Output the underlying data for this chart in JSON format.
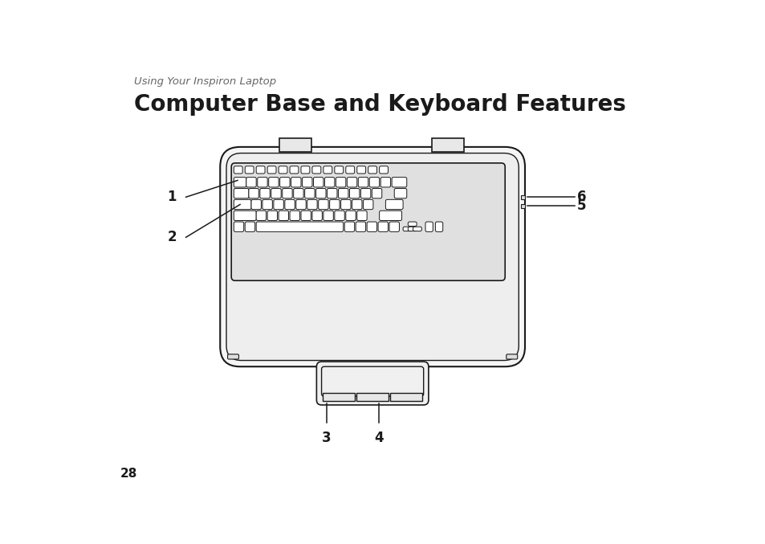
{
  "background_color": "#ffffff",
  "subtitle": "Using Your Inspiron Laptop",
  "subtitle_color": "#666666",
  "subtitle_fontsize": 9.5,
  "title": "Computer Base and Keyboard Features",
  "title_fontsize": 20,
  "title_fontweight": "bold",
  "title_color": "#1a1a1a",
  "page_number": "28",
  "page_number_fontsize": 11,
  "label_fontsize": 12,
  "label_fontweight": "bold",
  "line_color": "#1a1a1a",
  "outer_body_color": "#f5f5f5",
  "inner_body_color": "#eeeeee",
  "key_color": "#ffffff",
  "key_bg_color": "#e0e0e0",
  "touchpad_color": "#f0f0f0",
  "bump_color": "#e8e8e8",
  "connector_color": "#dddddd"
}
